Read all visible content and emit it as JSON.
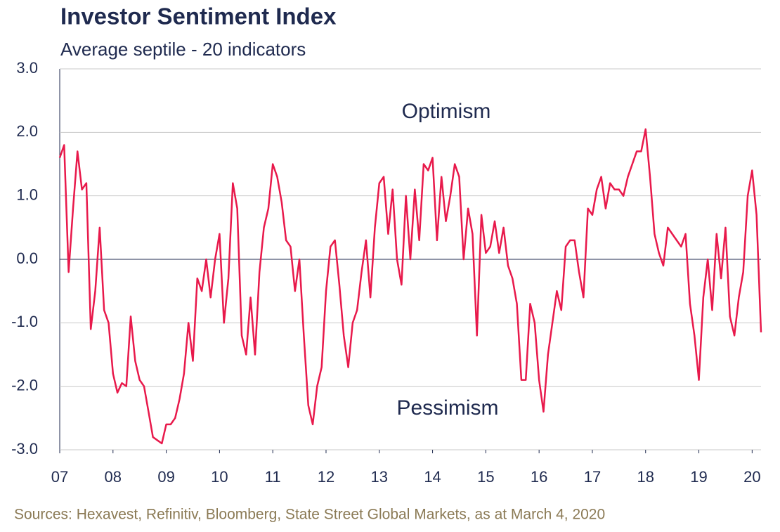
{
  "chart_data": {
    "type": "line",
    "title": "Investor Sentiment Index",
    "subtitle": "Average septile - 20 indicators",
    "annotations": [
      "Optimism",
      "Pessimism"
    ],
    "source": "Sources: Hexavest, Refinitiv, Bloomberg, State Street Global Markets, as at March 4, 2020",
    "color": "#e8194b",
    "grid": true,
    "xlim": [
      2007,
      2020.167
    ],
    "xticks": [
      {
        "value": 2007,
        "label": "07"
      },
      {
        "value": 2008,
        "label": "08"
      },
      {
        "value": 2009,
        "label": "09"
      },
      {
        "value": 2010,
        "label": "10"
      },
      {
        "value": 2011,
        "label": "11"
      },
      {
        "value": 2012,
        "label": "12"
      },
      {
        "value": 2013,
        "label": "13"
      },
      {
        "value": 2014,
        "label": "14"
      },
      {
        "value": 2015,
        "label": "15"
      },
      {
        "value": 2016,
        "label": "16"
      },
      {
        "value": 2017,
        "label": "17"
      },
      {
        "value": 2018,
        "label": "18"
      },
      {
        "value": 2019,
        "label": "19"
      },
      {
        "value": 2020,
        "label": "20"
      }
    ],
    "ylim": [
      -3,
      3
    ],
    "yticks": [
      {
        "value": 3,
        "label": "3.0"
      },
      {
        "value": 2,
        "label": "2.0"
      },
      {
        "value": 1,
        "label": "1.0"
      },
      {
        "value": 0,
        "label": "0.0"
      },
      {
        "value": -1,
        "label": "-1.0"
      },
      {
        "value": -2,
        "label": "-2.0"
      },
      {
        "value": -3,
        "label": "-3.0"
      }
    ],
    "x": [
      2007,
      2007.083,
      2007.167,
      2007.25,
      2007.333,
      2007.417,
      2007.5,
      2007.583,
      2007.667,
      2007.75,
      2007.833,
      2007.917,
      2008,
      2008.083,
      2008.167,
      2008.25,
      2008.333,
      2008.417,
      2008.5,
      2008.583,
      2008.667,
      2008.75,
      2008.833,
      2008.917,
      2009,
      2009.083,
      2009.167,
      2009.25,
      2009.333,
      2009.417,
      2009.5,
      2009.583,
      2009.667,
      2009.75,
      2009.833,
      2009.917,
      2010,
      2010.083,
      2010.167,
      2010.25,
      2010.333,
      2010.417,
      2010.5,
      2010.583,
      2010.667,
      2010.75,
      2010.833,
      2010.917,
      2011,
      2011.083,
      2011.167,
      2011.25,
      2011.333,
      2011.417,
      2011.5,
      2011.583,
      2011.667,
      2011.75,
      2011.833,
      2011.917,
      2012,
      2012.083,
      2012.167,
      2012.25,
      2012.333,
      2012.417,
      2012.5,
      2012.583,
      2012.667,
      2012.75,
      2012.833,
      2012.917,
      2013,
      2013.083,
      2013.167,
      2013.25,
      2013.333,
      2013.417,
      2013.5,
      2013.583,
      2013.667,
      2013.75,
      2013.833,
      2013.917,
      2014,
      2014.083,
      2014.167,
      2014.25,
      2014.333,
      2014.417,
      2014.5,
      2014.583,
      2014.667,
      2014.75,
      2014.833,
      2014.917,
      2015,
      2015.083,
      2015.167,
      2015.25,
      2015.333,
      2015.417,
      2015.5,
      2015.583,
      2015.667,
      2015.75,
      2015.833,
      2015.917,
      2016,
      2016.083,
      2016.167,
      2016.25,
      2016.333,
      2016.417,
      2016.5,
      2016.583,
      2016.667,
      2016.75,
      2016.833,
      2016.917,
      2017,
      2017.083,
      2017.167,
      2017.25,
      2017.333,
      2017.417,
      2017.5,
      2017.583,
      2017.667,
      2017.75,
      2017.833,
      2017.917,
      2018,
      2018.083,
      2018.167,
      2018.25,
      2018.333,
      2018.417,
      2018.5,
      2018.583,
      2018.667,
      2018.75,
      2018.833,
      2018.917,
      2019,
      2019.083,
      2019.167,
      2019.25,
      2019.333,
      2019.417,
      2019.5,
      2019.583,
      2019.667,
      2019.75,
      2019.833,
      2019.917,
      2020,
      2020.083,
      2020.167
    ],
    "values": [
      1.6,
      1.8,
      -0.2,
      0.8,
      1.7,
      1.1,
      1.2,
      -1.1,
      -0.5,
      0.5,
      -0.8,
      -1.0,
      -1.8,
      -2.1,
      -1.95,
      -2.0,
      -0.9,
      -1.6,
      -1.9,
      -2.0,
      -2.4,
      -2.8,
      -2.85,
      -2.9,
      -2.6,
      -2.6,
      -2.5,
      -2.2,
      -1.8,
      -1.0,
      -1.6,
      -0.3,
      -0.5,
      0.0,
      -0.6,
      0.0,
      0.4,
      -1.0,
      -0.3,
      1.2,
      0.8,
      -1.2,
      -1.5,
      -0.6,
      -1.5,
      -0.2,
      0.5,
      0.8,
      1.5,
      1.3,
      0.9,
      0.3,
      0.2,
      -0.5,
      0.0,
      -1.2,
      -2.3,
      -2.6,
      -2.0,
      -1.7,
      -0.5,
      0.2,
      0.3,
      -0.4,
      -1.2,
      -1.7,
      -1.0,
      -0.8,
      -0.2,
      0.3,
      -0.6,
      0.5,
      1.2,
      1.3,
      0.4,
      1.1,
      0.0,
      -0.4,
      1.0,
      0.0,
      1.1,
      0.3,
      1.5,
      1.4,
      1.6,
      0.3,
      1.3,
      0.6,
      1.0,
      1.5,
      1.3,
      0.0,
      0.8,
      0.4,
      -1.2,
      0.7,
      0.1,
      0.2,
      0.6,
      0.1,
      0.5,
      -0.1,
      -0.3,
      -0.7,
      -1.9,
      -1.9,
      -0.7,
      -1.0,
      -1.9,
      -2.4,
      -1.5,
      -1.0,
      -0.5,
      -0.8,
      0.2,
      0.3,
      0.3,
      -0.2,
      -0.6,
      0.8,
      0.7,
      1.1,
      1.3,
      0.8,
      1.2,
      1.1,
      1.1,
      1.0,
      1.3,
      1.5,
      1.7,
      1.7,
      2.05,
      1.3,
      0.4,
      0.1,
      -0.1,
      0.5,
      0.4,
      0.3,
      0.2,
      0.4,
      -0.7,
      -1.2,
      -1.9,
      -0.6,
      0.0,
      -0.8,
      0.4,
      -0.3,
      0.5,
      -0.9,
      -1.2,
      -0.6,
      -0.2,
      1.0,
      1.4,
      0.7,
      -1.15
    ]
  }
}
